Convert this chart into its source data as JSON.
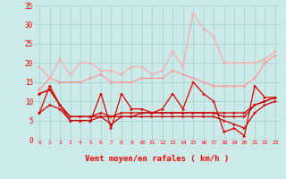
{
  "x": [
    0,
    1,
    2,
    3,
    4,
    5,
    6,
    7,
    8,
    9,
    10,
    11,
    12,
    13,
    14,
    15,
    16,
    17,
    18,
    19,
    20,
    21,
    22,
    23
  ],
  "line1": [
    7,
    14,
    9,
    5,
    5,
    5,
    12,
    3,
    12,
    8,
    8,
    7,
    8,
    12,
    8,
    15,
    12,
    10,
    2,
    3,
    1,
    14,
    11,
    11
  ],
  "line2": [
    12,
    13,
    9,
    6,
    6,
    6,
    7,
    6,
    7,
    7,
    7,
    7,
    7,
    7,
    7,
    7,
    7,
    7,
    7,
    7,
    7,
    9,
    10,
    11
  ],
  "line3": [
    12,
    13,
    9,
    6,
    6,
    6,
    6,
    6,
    6,
    6,
    7,
    7,
    7,
    7,
    7,
    7,
    7,
    7,
    6,
    6,
    6,
    9,
    10,
    11
  ],
  "line4": [
    7,
    9,
    8,
    5,
    5,
    5,
    6,
    4,
    6,
    6,
    6,
    6,
    6,
    6,
    6,
    6,
    6,
    6,
    5,
    4,
    3,
    7,
    9,
    10
  ],
  "line5": [
    13,
    16,
    15,
    15,
    15,
    16,
    17,
    15,
    15,
    15,
    16,
    16,
    16,
    18,
    17,
    16,
    15,
    14,
    14,
    14,
    14,
    16,
    20,
    22
  ],
  "line6": [
    19,
    16,
    21,
    17,
    20,
    20,
    18,
    18,
    17,
    19,
    19,
    17,
    18,
    23,
    19,
    33,
    29,
    27,
    20,
    20,
    20,
    20,
    21,
    23
  ],
  "arrows": [
    "↙",
    "↓",
    "↗",
    "↘",
    "↗",
    "↙",
    "↙",
    "→",
    "↓",
    "↗",
    "↙",
    "↘",
    "↖",
    "↑",
    "↗",
    "↑",
    "↑",
    "↙",
    "↗",
    "↑",
    "↗",
    "",
    "↙",
    "↘"
  ],
  "bg_color": "#cceae8",
  "grid_color": "#aad4d2",
  "line1_color": "#dd0000",
  "line2_color": "#cc0000",
  "line3_color": "#cc0000",
  "line4_color": "#cc0000",
  "line5_color": "#ff9999",
  "line6_color": "#ffaaaa",
  "xlabel": "Vent moyen/en rafales ( km/h )",
  "ylim": [
    0,
    35
  ],
  "yticks": [
    0,
    5,
    10,
    15,
    20,
    25,
    30,
    35
  ],
  "xlim": [
    -0.5,
    23.5
  ]
}
